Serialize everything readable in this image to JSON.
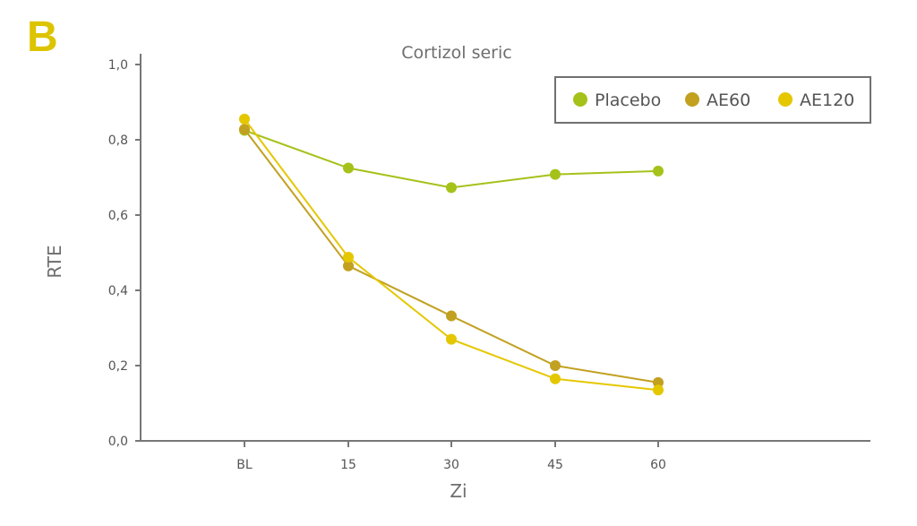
{
  "panel_label": "B",
  "chart_data": {
    "type": "line",
    "title": "Cortizol seric",
    "xlabel": "Zi",
    "ylabel": "RTE",
    "categories": [
      "BL",
      "15",
      "30",
      "45",
      "60"
    ],
    "ylim": [
      0,
      1.0
    ],
    "yticks": [
      "0,0",
      "0,2",
      "0,4",
      "0,6",
      "0,8",
      "1,0"
    ],
    "grid": false,
    "legend_position": "top-right",
    "series": [
      {
        "name": "Placebo",
        "color": "#a5c21a",
        "values": [
          0.825,
          0.725,
          0.673,
          0.708,
          0.717
        ]
      },
      {
        "name": "AE60",
        "color": "#c2a020",
        "values": [
          0.828,
          0.465,
          0.332,
          0.2,
          0.155
        ]
      },
      {
        "name": "AE120",
        "color": "#e5c700",
        "values": [
          0.855,
          0.488,
          0.27,
          0.165,
          0.135
        ]
      }
    ]
  }
}
